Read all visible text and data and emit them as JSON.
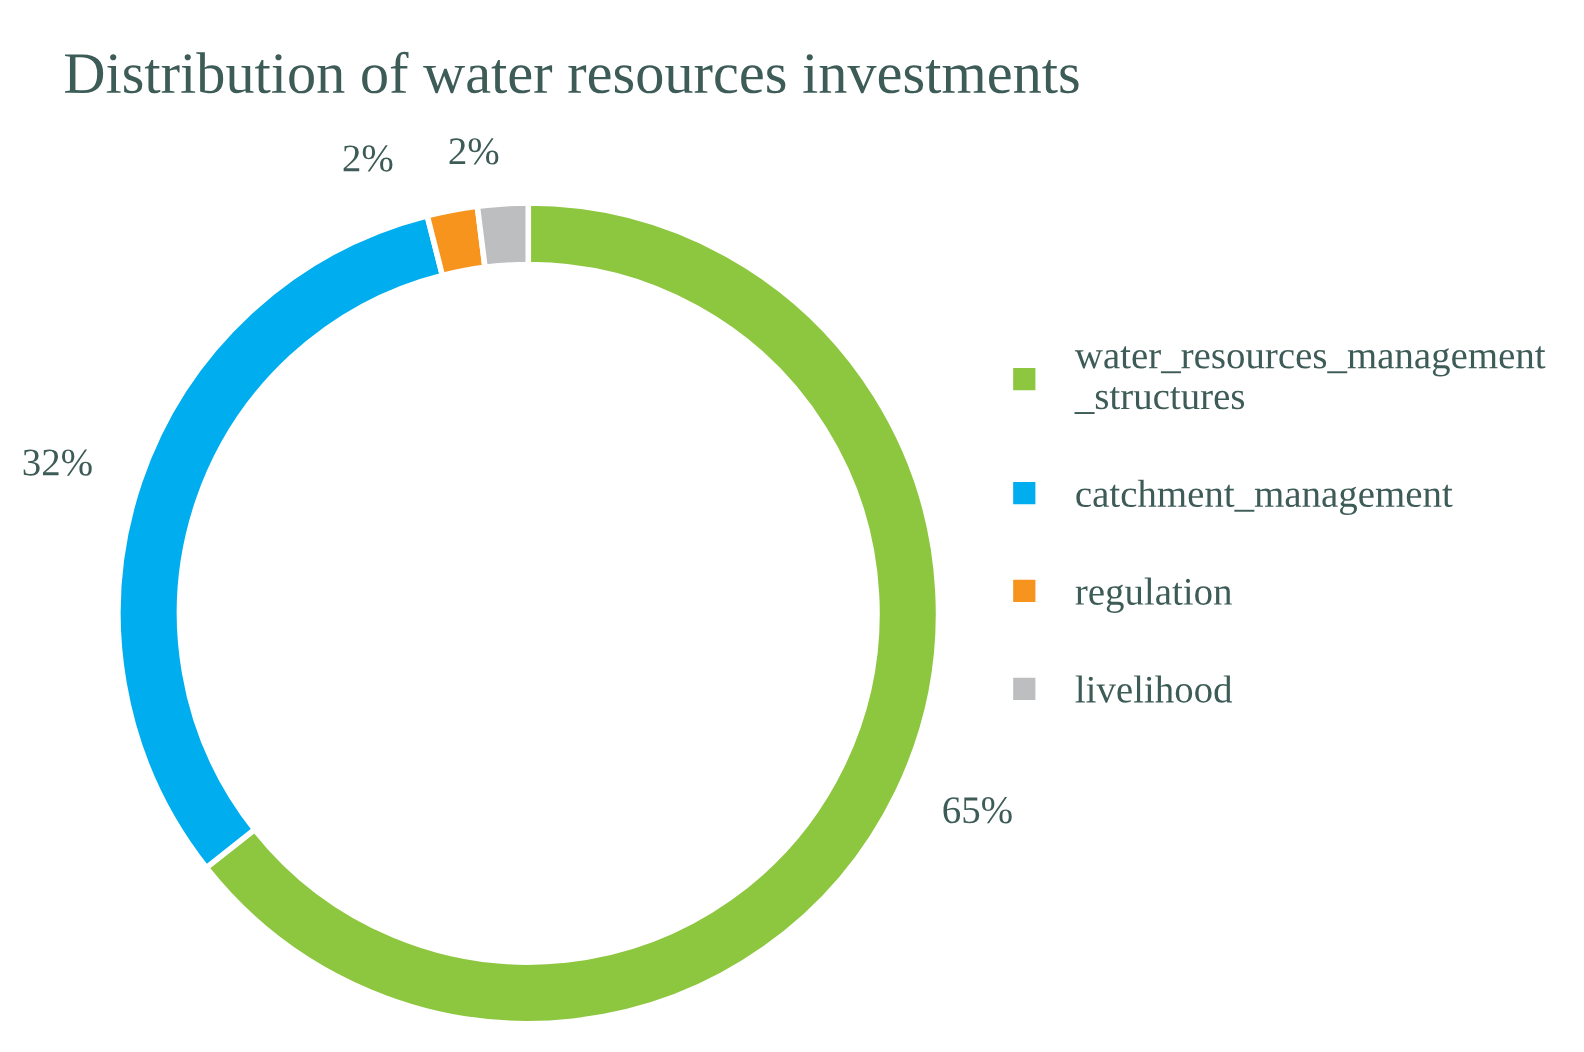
{
  "chart_data": {
    "type": "donut",
    "title": "Distribution of water resources investments",
    "categories": [
      "water_resources_management_structures",
      "catchment_management",
      "regulation",
      "livelihood"
    ],
    "values": [
      65,
      32,
      2,
      2
    ],
    "value_labels": [
      "65%",
      "32%",
      "2%",
      "2%"
    ],
    "colors": [
      "#8dc63f",
      "#00aeef",
      "#f7941d",
      "#bcbec0"
    ],
    "legend": "right"
  }
}
